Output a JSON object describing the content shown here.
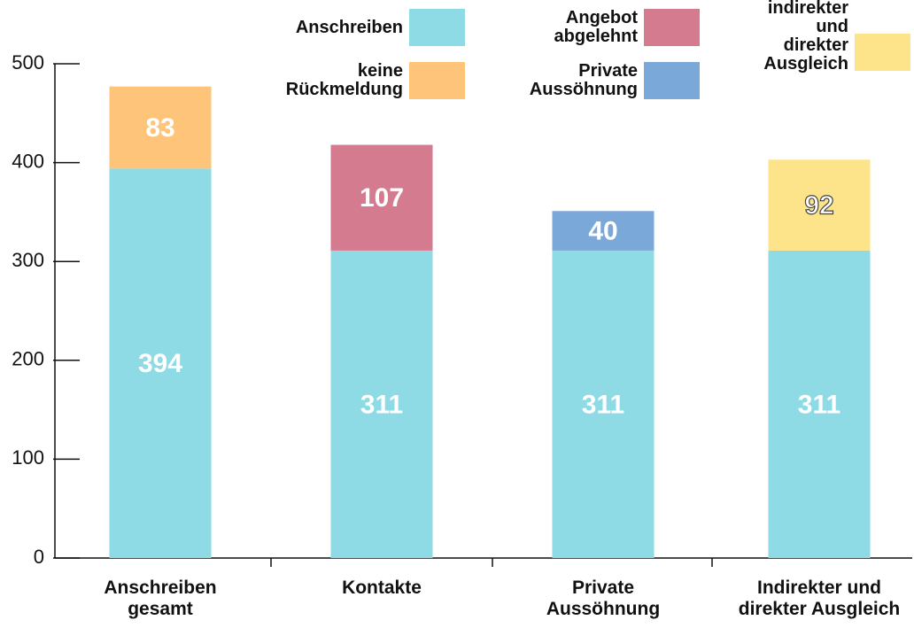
{
  "chart_data": {
    "type": "stacked_bar",
    "categories": [
      "Anschreiben\ngesamt",
      "Kontakte",
      "Private\nAussöhnung",
      "Indirekter und\ndirekter Ausgleich"
    ],
    "series": [
      {
        "name": "Anschreiben",
        "color": "#8fdbe5",
        "values": [
          394,
          311,
          311,
          311
        ]
      },
      {
        "name": "keine\nRückmeldung",
        "color": "#fdc47a",
        "values": [
          83,
          null,
          null,
          null
        ]
      },
      {
        "name": "Angebot\nabgelehnt",
        "color": "#d47b90",
        "values": [
          null,
          107,
          null,
          null
        ]
      },
      {
        "name": "Private\nAussöhnung",
        "color": "#7aa8d8",
        "values": [
          null,
          null,
          40,
          null
        ]
      },
      {
        "name": "indirekter\nund\ndirekter\nAusgleich",
        "color": "#fde38a",
        "values": [
          null,
          null,
          null,
          92
        ]
      }
    ],
    "ylim": [
      0,
      500
    ],
    "yticks": [
      0,
      100,
      200,
      300,
      400,
      500
    ]
  }
}
